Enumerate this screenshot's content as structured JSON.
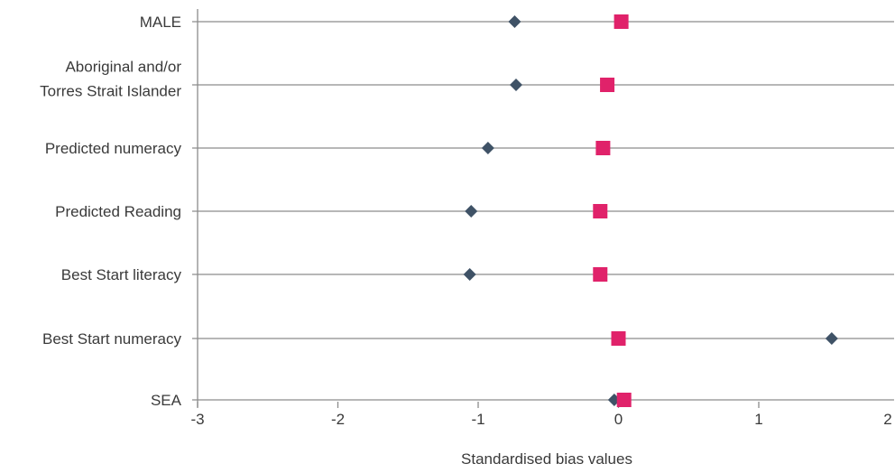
{
  "chart_data": {
    "type": "scatter",
    "orientation": "horizontal-dot-plot",
    "categories": [
      "MALE",
      [
        "Aboriginal and/or",
        "Torres Strait Islander"
      ],
      "Predicted numeracy",
      "Predicted Reading",
      "Best Start literacy",
      "Best Start numeracy",
      "SEA"
    ],
    "series": [
      {
        "color": "#3f5266",
        "marker": "diamond",
        "values": [
          -0.74,
          -0.73,
          -0.93,
          -1.05,
          -1.06,
          1.52,
          -0.03
        ]
      },
      {
        "color": "#e0226a",
        "marker": "square",
        "values": [
          0.02,
          -0.08,
          -0.11,
          -0.13,
          -0.13,
          0.0,
          0.04
        ]
      }
    ],
    "x_ticks": [
      "-3",
      "-2",
      "-1",
      "0",
      "1",
      "2"
    ],
    "xlim": [
      -3,
      2
    ],
    "xlabel": "Standardised bias values",
    "grid": "horizontal lines per category",
    "axis_color": "#8c8c8c"
  }
}
